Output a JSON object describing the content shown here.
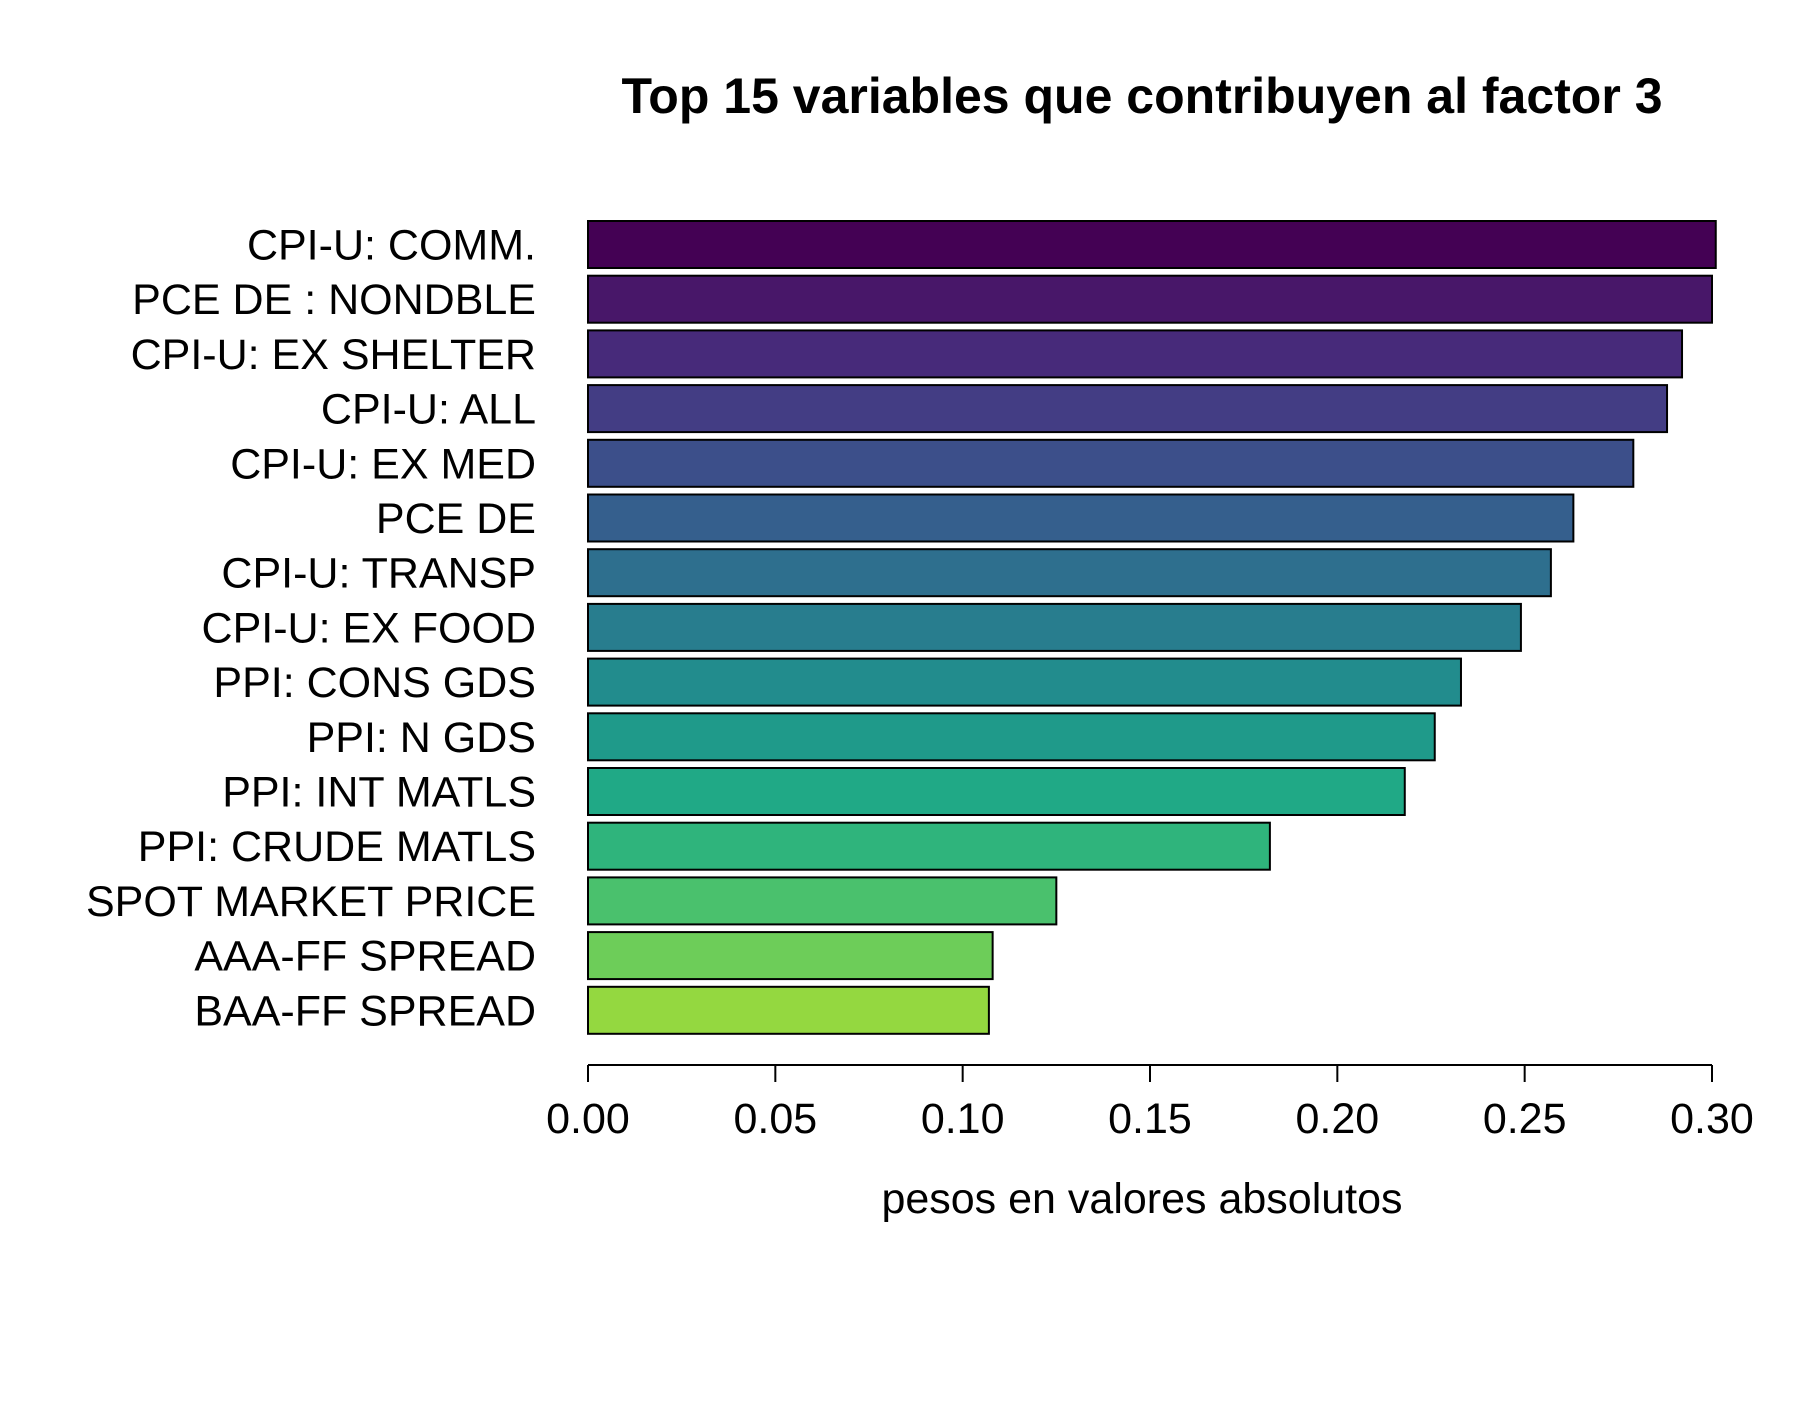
{
  "chart_data": {
    "type": "bar",
    "orientation": "horizontal",
    "title": "Top 15 variables que contribuyen al factor 3",
    "xlabel": "pesos en valores absolutos",
    "ylabel": "",
    "xlim": [
      0,
      0.3
    ],
    "x_ticks": [
      "0.00",
      "0.05",
      "0.10",
      "0.15",
      "0.20",
      "0.25",
      "0.30"
    ],
    "x_tick_values": [
      0,
      0.05,
      0.1,
      0.15,
      0.2,
      0.25,
      0.3
    ],
    "grid": false,
    "legend": "none",
    "categories": [
      "CPI-U: COMM.",
      "PCE DE : NONDBLE",
      "CPI-U: EX SHELTER",
      "CPI-U: ALL",
      "CPI-U: EX MED",
      "PCE DE",
      "CPI-U: TRANSP",
      "CPI-U: EX FOOD",
      "PPI: CONS GDS",
      "PPI: N GDS",
      "PPI: INT MATLS",
      "PPI: CRUDE MATLS",
      "SPOT MARKET PRICE",
      "AAA-FF SPREAD",
      "BAA-FF SPREAD"
    ],
    "values": [
      0.301,
      0.3,
      0.292,
      0.288,
      0.279,
      0.263,
      0.257,
      0.249,
      0.233,
      0.226,
      0.218,
      0.182,
      0.125,
      0.108,
      0.107
    ],
    "colors": [
      "#440154",
      "#481769",
      "#472A7A",
      "#433D84",
      "#3C4F8A",
      "#355F8D",
      "#2E6F8E",
      "#287D8E",
      "#228C8D",
      "#1F9A8A",
      "#20A986",
      "#2FB47C",
      "#4AC16D",
      "#6DCD59",
      "#94D840"
    ],
    "bar_stroke": "#000000"
  }
}
